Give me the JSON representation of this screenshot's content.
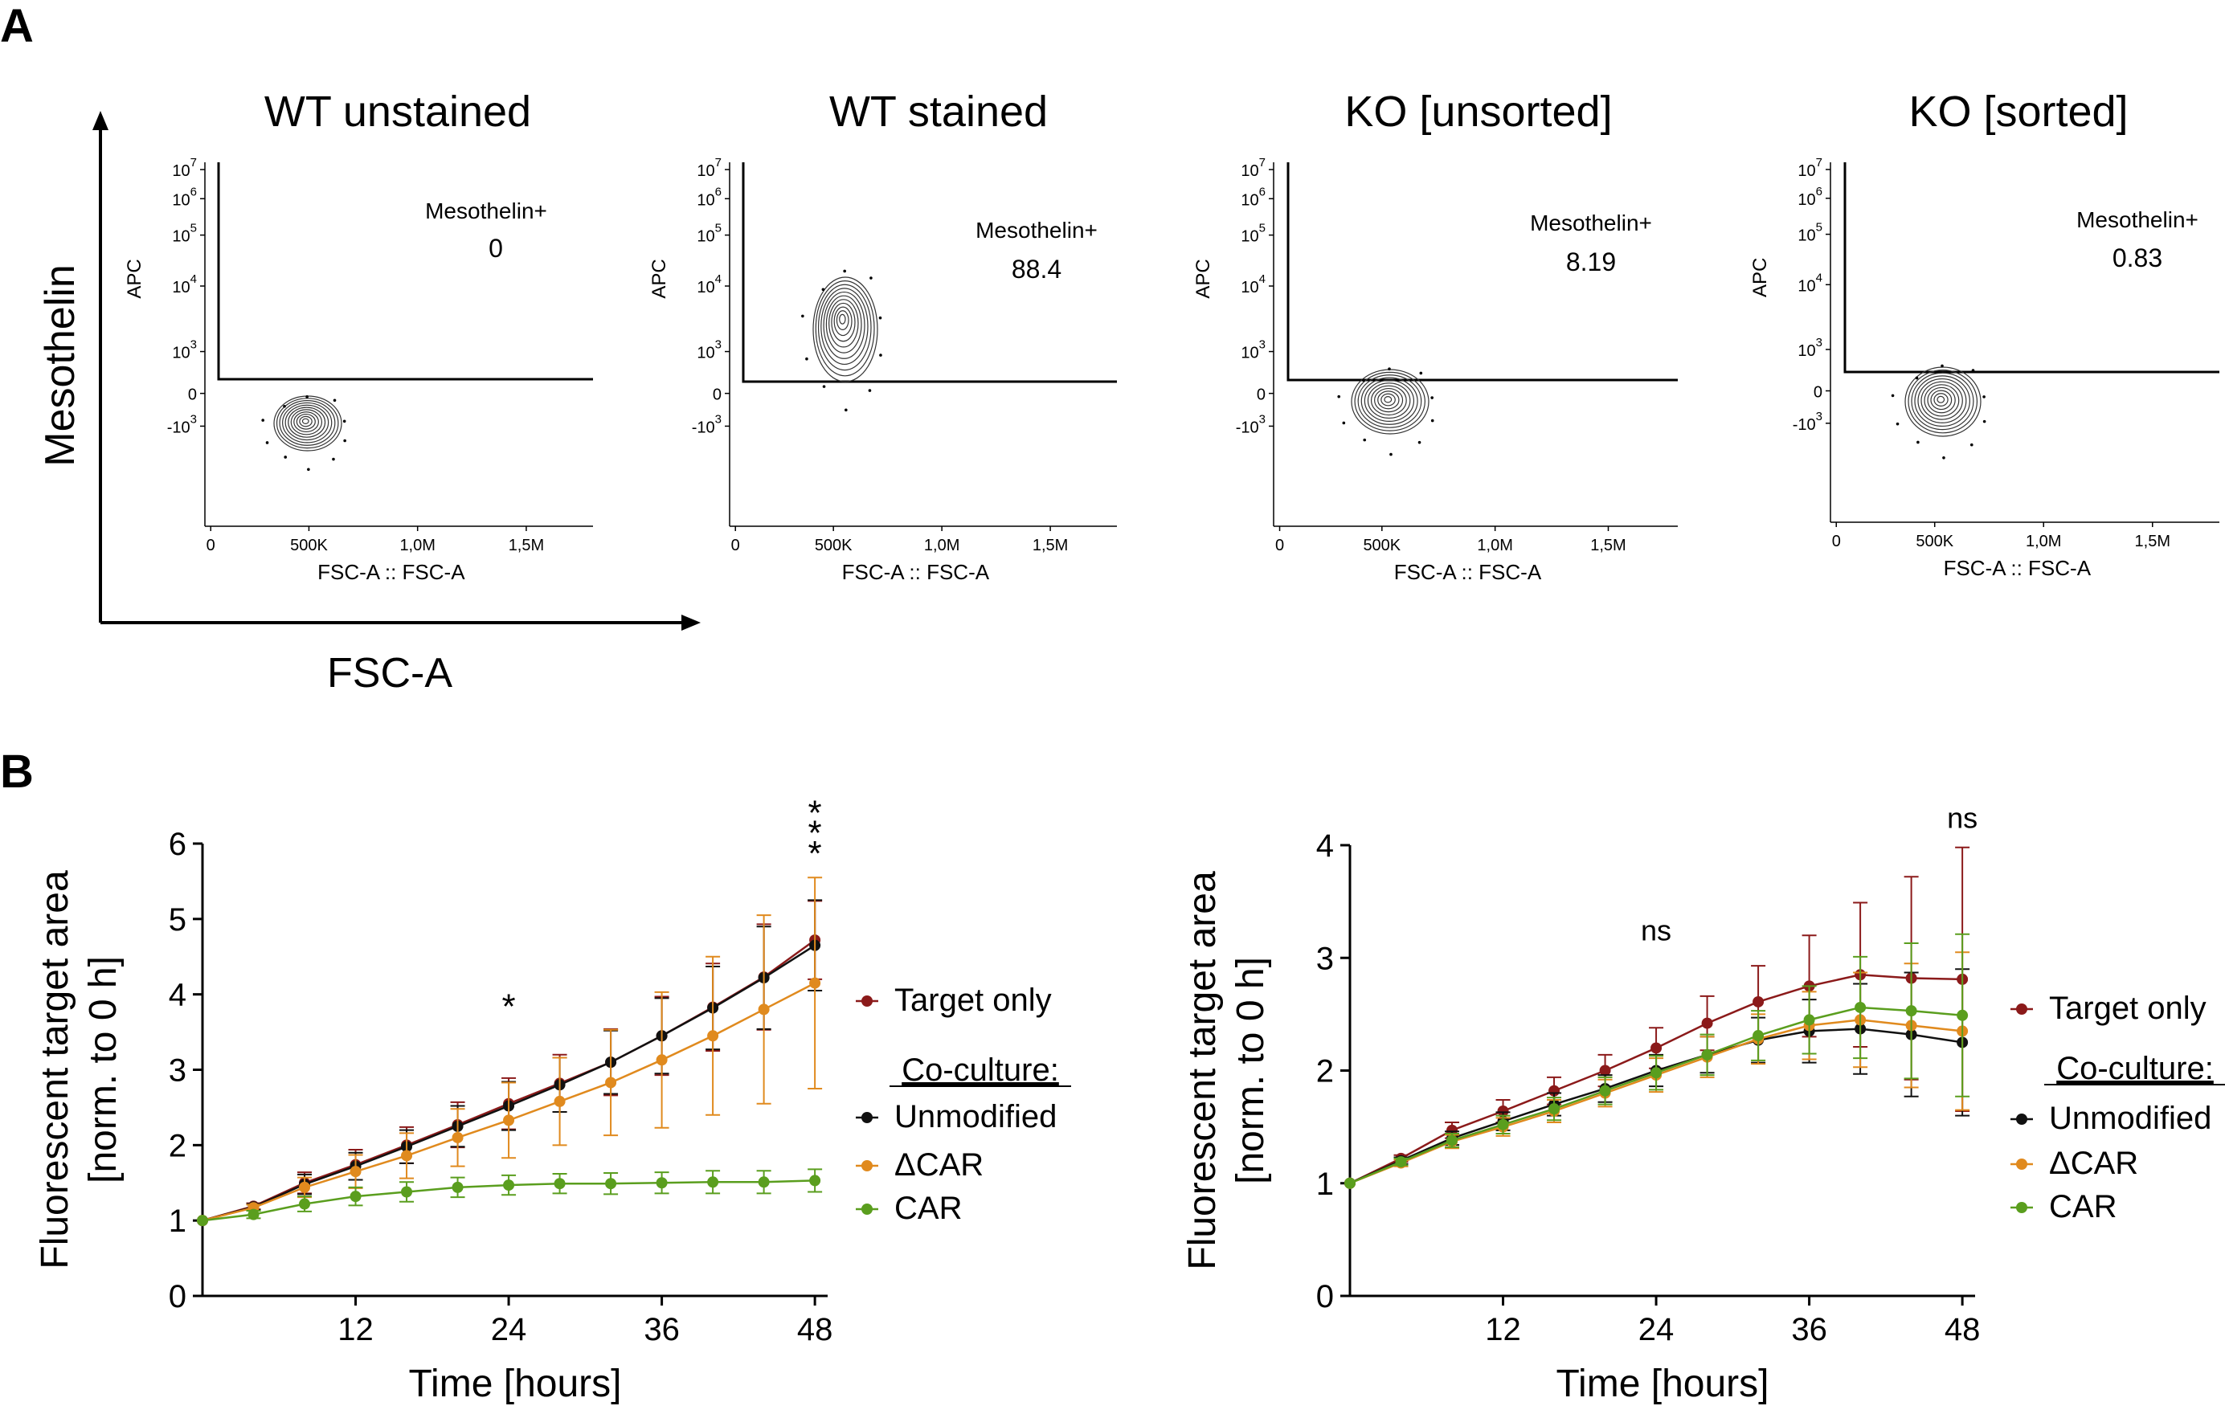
{
  "panels": {
    "a": "A",
    "b": "B"
  },
  "panel_a": {
    "y_axis_title": "Mesothelin",
    "x_axis_title": "FSC-A",
    "gate_label": "Mesothelin+",
    "ylabel": "APC",
    "xlabel": "FSC-A :: FSC-A",
    "y_ticks": [
      {
        "b": "10",
        "e": "7"
      },
      {
        "b": "10",
        "e": "6"
      },
      {
        "b": "10",
        "e": "5"
      },
      {
        "b": "10",
        "e": "4"
      },
      {
        "b": "10",
        "e": "3"
      },
      {
        "b": "0",
        "e": ""
      },
      {
        "b": "-10",
        "e": "3"
      }
    ],
    "x_ticks": [
      "0",
      "500K",
      "1,0M",
      "1,5M"
    ],
    "plots": [
      {
        "title": "WT unstained",
        "gate_value": "0"
      },
      {
        "title": "WT stained",
        "gate_value": "88.4"
      },
      {
        "title": "KO [unsorted]",
        "gate_value": "8.19"
      },
      {
        "title": "KO [sorted]",
        "gate_value": "0.83"
      }
    ]
  },
  "legend": {
    "target_only": "Target only",
    "coculture_header": "Co-culture:",
    "unmodified": "Unmodified",
    "dcar": "ΔCAR",
    "car": "CAR"
  },
  "colors": {
    "target_only": "#8b1a1a",
    "unmodified": "#111111",
    "dcar": "#e08a1e",
    "car": "#5a9e1e"
  },
  "chart_data": [
    {
      "type": "line",
      "title": "",
      "xlabel": "Time [hours]",
      "ylabel_line1": "Fluorescent target area",
      "ylabel_line2": "[norm. to 0 h]",
      "xlim": [
        0,
        49
      ],
      "ylim": [
        0,
        6
      ],
      "xticks": [
        12,
        24,
        36,
        48
      ],
      "yticks": [
        0,
        1,
        2,
        3,
        4,
        5,
        6
      ],
      "x": [
        0,
        4,
        8,
        12,
        16,
        20,
        24,
        28,
        32,
        36,
        40,
        44,
        48
      ],
      "series": [
        {
          "name": "Target only",
          "key": "target_only",
          "values": [
            1.0,
            1.19,
            1.5,
            1.74,
            2.0,
            2.27,
            2.55,
            2.82,
            3.1,
            3.45,
            3.83,
            4.23,
            4.72
          ],
          "err": [
            0,
            0.04,
            0.14,
            0.2,
            0.24,
            0.3,
            0.34,
            0.38,
            0.44,
            0.52,
            0.58,
            0.7,
            0.52
          ]
        },
        {
          "name": "Unmodified",
          "key": "unmodified",
          "values": [
            1.0,
            1.18,
            1.48,
            1.72,
            1.98,
            2.25,
            2.52,
            2.8,
            3.1,
            3.45,
            3.82,
            4.22,
            4.65
          ],
          "err": [
            0,
            0.04,
            0.13,
            0.18,
            0.22,
            0.27,
            0.32,
            0.36,
            0.42,
            0.5,
            0.55,
            0.68,
            0.6
          ]
        },
        {
          "name": "ΔCAR",
          "key": "dcar",
          "values": [
            1.0,
            1.17,
            1.44,
            1.65,
            1.86,
            2.1,
            2.33,
            2.58,
            2.83,
            3.13,
            3.45,
            3.8,
            4.15
          ],
          "err": [
            0,
            0.04,
            0.13,
            0.22,
            0.3,
            0.38,
            0.5,
            0.58,
            0.7,
            0.9,
            1.05,
            1.25,
            1.4
          ]
        },
        {
          "name": "CAR",
          "key": "car",
          "values": [
            1.0,
            1.08,
            1.22,
            1.32,
            1.38,
            1.44,
            1.47,
            1.49,
            1.49,
            1.5,
            1.51,
            1.51,
            1.53
          ],
          "err": [
            0,
            0.05,
            0.1,
            0.12,
            0.13,
            0.13,
            0.13,
            0.13,
            0.14,
            0.14,
            0.15,
            0.15,
            0.15
          ]
        }
      ],
      "annotations": [
        {
          "x": 24,
          "y": 3.98,
          "text": "*"
        },
        {
          "x": 48,
          "y": 6.55,
          "text": "*"
        },
        {
          "x": 48,
          "y": 6.28,
          "text": "*"
        },
        {
          "x": 48,
          "y": 6.01,
          "text": "*"
        }
      ]
    },
    {
      "type": "line",
      "title": "",
      "xlabel": "Time [hours]",
      "ylabel_line1": "Fluorescent target area",
      "ylabel_line2": "[norm. to 0 h]",
      "xlim": [
        0,
        49
      ],
      "ylim": [
        0,
        4
      ],
      "xticks": [
        12,
        24,
        36,
        48
      ],
      "yticks": [
        0,
        1,
        2,
        3,
        4
      ],
      "x": [
        0,
        4,
        8,
        12,
        16,
        20,
        24,
        28,
        32,
        36,
        40,
        44,
        48
      ],
      "series": [
        {
          "name": "Target only",
          "key": "target_only",
          "values": [
            1.0,
            1.22,
            1.47,
            1.64,
            1.82,
            2.0,
            2.2,
            2.42,
            2.61,
            2.75,
            2.85,
            2.82,
            2.81
          ],
          "err": [
            0,
            0.03,
            0.07,
            0.1,
            0.12,
            0.14,
            0.18,
            0.24,
            0.32,
            0.45,
            0.64,
            0.9,
            1.17
          ]
        },
        {
          "name": "Unmodified",
          "key": "unmodified",
          "values": [
            1.0,
            1.2,
            1.4,
            1.55,
            1.7,
            1.84,
            2.0,
            2.14,
            2.27,
            2.35,
            2.37,
            2.32,
            2.25
          ],
          "err": [
            0,
            0.03,
            0.06,
            0.08,
            0.1,
            0.12,
            0.14,
            0.16,
            0.2,
            0.28,
            0.4,
            0.55,
            0.65
          ]
        },
        {
          "name": "ΔCAR",
          "key": "dcar",
          "values": [
            1.0,
            1.18,
            1.37,
            1.5,
            1.64,
            1.8,
            1.96,
            2.12,
            2.28,
            2.4,
            2.45,
            2.4,
            2.35
          ],
          "err": [
            0,
            0.03,
            0.06,
            0.08,
            0.1,
            0.12,
            0.15,
            0.18,
            0.22,
            0.3,
            0.42,
            0.55,
            0.7
          ]
        },
        {
          "name": "CAR",
          "key": "car",
          "values": [
            1.0,
            1.19,
            1.38,
            1.52,
            1.66,
            1.82,
            1.98,
            2.14,
            2.31,
            2.45,
            2.56,
            2.53,
            2.49
          ],
          "err": [
            0,
            0.03,
            0.06,
            0.08,
            0.1,
            0.12,
            0.15,
            0.18,
            0.22,
            0.3,
            0.45,
            0.6,
            0.72
          ]
        }
      ],
      "annotations": [
        {
          "x": 24,
          "y": 3.24,
          "text": "ns"
        },
        {
          "x": 48,
          "y": 4.24,
          "text": "ns"
        }
      ]
    }
  ]
}
